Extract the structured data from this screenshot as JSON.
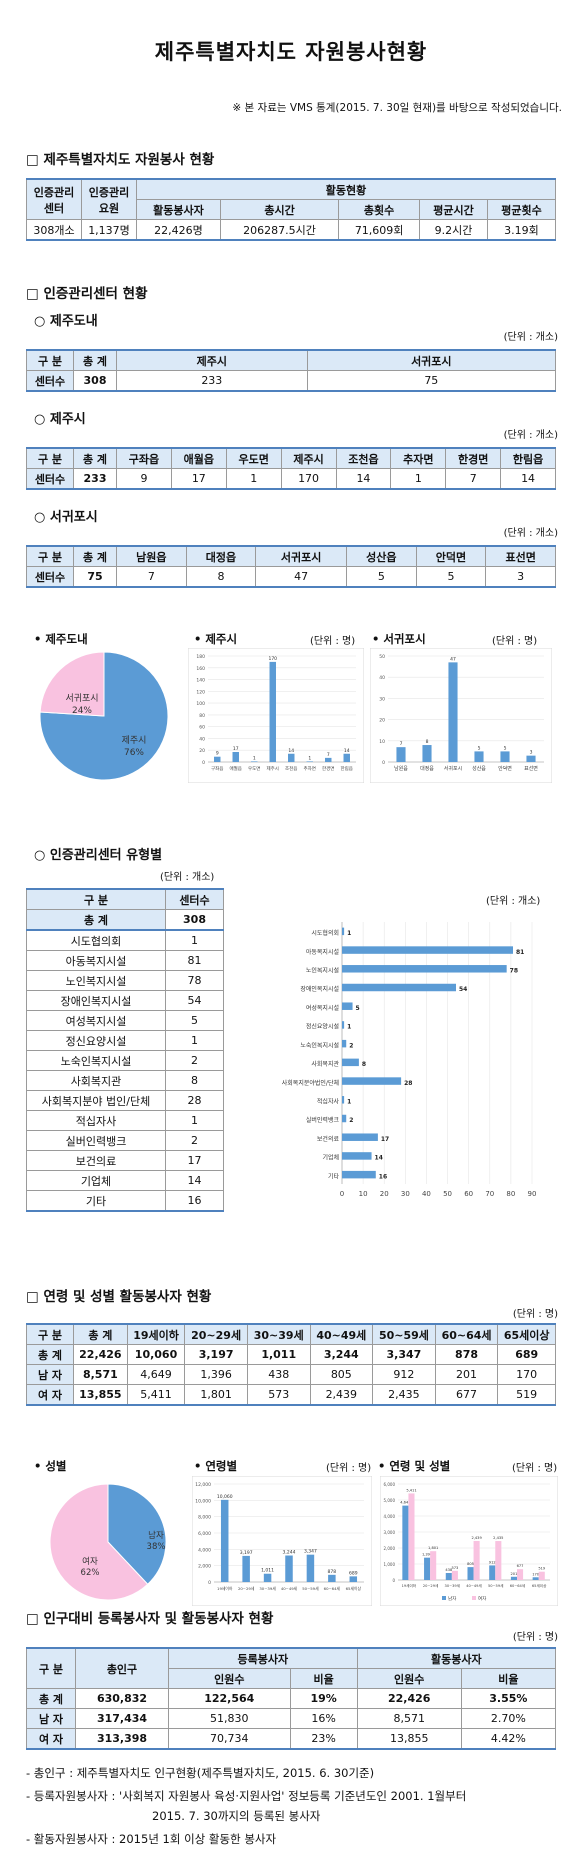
{
  "title": "제주특별자치도 자원봉사현황",
  "note": "※ 본 자료는 VMS 통계(2015. 7. 30일 현재)를 바탕으로 작성되었습니다.",
  "sec1": {
    "title": "□ 제주특별자치도 자원봉사 현황",
    "h_center": "인증관리 센터",
    "h_staff": "인증관리 요원",
    "h_activity": "활동현황",
    "cols": [
      "활동봉사자",
      "총시간",
      "총횟수",
      "평균시간",
      "평균횟수"
    ],
    "values": [
      "308개소",
      "1,137명",
      "22,426명",
      "206287.5시간",
      "71,609회",
      "9.2시간",
      "3.19회"
    ]
  },
  "sec2": {
    "title": "□ 인증관리센터 현황",
    "unit": "(단위 : 개소)",
    "jeju_do": {
      "title": "○ 제주도내",
      "headers": [
        "구 분",
        "총 계",
        "제주시",
        "서귀포시"
      ],
      "row": [
        "센터수",
        "308",
        "233",
        "75"
      ]
    },
    "jeju_si": {
      "title": "○ 제주시",
      "headers": [
        "구 분",
        "총 계",
        "구좌읍",
        "애월읍",
        "우도면",
        "제주시",
        "조천읍",
        "추자면",
        "한경면",
        "한림읍"
      ],
      "row": [
        "센터수",
        "233",
        "9",
        "17",
        "1",
        "170",
        "14",
        "1",
        "7",
        "14"
      ]
    },
    "seogwipo": {
      "title": "○ 서귀포시",
      "headers": [
        "구 분",
        "총 계",
        "남원읍",
        "대정읍",
        "서귀포시",
        "성산읍",
        "안덕면",
        "표선면"
      ],
      "row": [
        "센터수",
        "75",
        "7",
        "8",
        "47",
        "5",
        "5",
        "3"
      ]
    }
  },
  "charts1": {
    "pie_caption": "• 제주도내",
    "pie_labels": [
      "서귀포시",
      "24%",
      "제주시",
      "76%"
    ],
    "bar1_caption": "• 제주시",
    "bar2_caption": "• 서귀포시",
    "unit": "(단위 : 명)"
  },
  "sec3": {
    "title": "○ 인증관리센터 유형별",
    "unit": "(단위 : 개소)",
    "chart_unit": "(단위 : 개소)",
    "headers": [
      "구 분",
      "센터수"
    ],
    "total": [
      "총 계",
      "308"
    ],
    "rows": [
      [
        "시도협의회",
        "1"
      ],
      [
        "아동복지시설",
        "81"
      ],
      [
        "노인복지시설",
        "78"
      ],
      [
        "장애인복지시설",
        "54"
      ],
      [
        "여성복지시설",
        "5"
      ],
      [
        "정신요양시설",
        "1"
      ],
      [
        "노숙인복지시설",
        "2"
      ],
      [
        "사회복지관",
        "8"
      ],
      [
        "사회복지분야 법인/단체",
        "28"
      ],
      [
        "적십자사",
        "1"
      ],
      [
        "실버인력뱅크",
        "2"
      ],
      [
        "보건의료",
        "17"
      ],
      [
        "기업체",
        "14"
      ],
      [
        "기타",
        "16"
      ]
    ],
    "chart_labels": [
      "시도협의회",
      "아동복지시설",
      "노인복지시설",
      "장애인복지시설",
      "여성복지시설",
      "정신요양시설",
      "노숙인복지시설",
      "사회복지관",
      "사회복지분야법인/단체",
      "적십자사",
      "실버인력뱅크",
      "보건의료",
      "기업체",
      "기타"
    ]
  },
  "sec4": {
    "title": "□ 연령 및 성별 활동봉사자 현황",
    "unit": "(단위 : 명)",
    "headers": [
      "구 분",
      "총 계",
      "19세이하",
      "20~29세",
      "30~39세",
      "40~49세",
      "50~59세",
      "60~64세",
      "65세이상"
    ],
    "rows": [
      [
        "총 계",
        "22,426",
        "10,060",
        "3,197",
        "1,011",
        "3,244",
        "3,347",
        "878",
        "689"
      ],
      [
        "남 자",
        "8,571",
        "4,649",
        "1,396",
        "438",
        "805",
        "912",
        "201",
        "170"
      ],
      [
        "여 자",
        "13,855",
        "5,411",
        "1,801",
        "573",
        "2,439",
        "2,435",
        "677",
        "519"
      ]
    ]
  },
  "charts2": {
    "pie_caption": "• 성별",
    "pie_labels": [
      "남자",
      "38%",
      "여자",
      "62%"
    ],
    "bar_caption": "• 연령별",
    "bar_unit": "(단위 : 명)",
    "grp_caption": "• 연령 및 성별",
    "grp_unit": "(단위 : 명)"
  },
  "sec5": {
    "title": "□ 인구대비 등록봉사자 및 활동봉사자 현황",
    "unit": "(단위 : 명)",
    "h_gubun": "구 분",
    "h_pop": "총인구",
    "h_reg": "등록봉사자",
    "h_act": "활동봉사자",
    "h_sub": [
      "인원수",
      "비율",
      "인원수",
      "비율"
    ],
    "rows": [
      [
        "총 계",
        "630,832",
        "122,564",
        "19%",
        "22,426",
        "3.55%"
      ],
      [
        "남 자",
        "317,434",
        "51,830",
        "16%",
        "8,571",
        "2.70%"
      ],
      [
        "여 자",
        "313,398",
        "70,734",
        "23%",
        "13,855",
        "4.42%"
      ]
    ]
  },
  "footnotes": [
    "- 총인구 : 제주특별자치도 인구현황(제주특별자치도, 2015. 6. 30기준)",
    "- 등록자원봉사자 : '사회복지 자원봉사 육성·지원사업' 정보등록 기준년도인 2001. 1월부터",
    "2015. 7. 30까지의 등록된 봉사자",
    "- 활동자원봉사자 : 2015년 1회 이상 활동한 봉사자"
  ],
  "chart_data": [
    {
      "type": "pie",
      "title": "제주도내",
      "categories": [
        "제주시",
        "서귀포시"
      ],
      "values": [
        76,
        24
      ]
    },
    {
      "type": "bar",
      "title": "제주시",
      "categories": [
        "구좌읍",
        "애월읍",
        "우도면",
        "제주시",
        "조천읍",
        "추자면",
        "한경면",
        "한림읍"
      ],
      "values": [
        9,
        17,
        1,
        170,
        14,
        1,
        7,
        14
      ],
      "ylim": [
        0,
        180
      ]
    },
    {
      "type": "bar",
      "title": "서귀포시",
      "categories": [
        "남원읍",
        "대정읍",
        "서귀포시",
        "성산읍",
        "안덕면",
        "표선면"
      ],
      "values": [
        7,
        8,
        47,
        5,
        5,
        3
      ],
      "ylim": [
        0,
        50
      ]
    },
    {
      "type": "bar",
      "orientation": "horizontal",
      "categories": [
        "시도협의회",
        "아동복지시설",
        "노인복지시설",
        "장애인복지시설",
        "여성복지시설",
        "정신요양시설",
        "노숙인복지시설",
        "사회복지관",
        "사회복지분야법인/단체",
        "적십자사",
        "실버인력뱅크",
        "보건의료",
        "기업체",
        "기타"
      ],
      "values": [
        1,
        81,
        78,
        54,
        5,
        1,
        2,
        8,
        28,
        1,
        2,
        17,
        14,
        16
      ],
      "xlim": [
        0,
        90
      ]
    },
    {
      "type": "pie",
      "title": "성별",
      "categories": [
        "남자",
        "여자"
      ],
      "values": [
        38,
        62
      ]
    },
    {
      "type": "bar",
      "title": "연령별",
      "categories": [
        "19세이하",
        "20~29세",
        "30~39세",
        "40~49세",
        "50~59세",
        "60~64세",
        "65세이상"
      ],
      "values": [
        10060,
        3197,
        1011,
        3244,
        3347,
        878,
        689
      ],
      "ylim": [
        0,
        12000
      ]
    },
    {
      "type": "bar",
      "title": "연령 및 성별",
      "categories": [
        "19세이하",
        "20~29세",
        "30~39세",
        "40~49세",
        "50~59세",
        "60~64세",
        "65세이상"
      ],
      "series": [
        {
          "name": "남자",
          "values": [
            4649,
            1396,
            438,
            805,
            912,
            201,
            170
          ]
        },
        {
          "name": "여자",
          "values": [
            5411,
            1801,
            573,
            2439,
            2435,
            677,
            519
          ]
        }
      ],
      "ylim": [
        0,
        6000
      ]
    }
  ],
  "colors": {
    "blue": "#5b9bd5",
    "pink": "#f9c2e0",
    "header": "#dbe9f7",
    "border": "#4f81bd"
  }
}
